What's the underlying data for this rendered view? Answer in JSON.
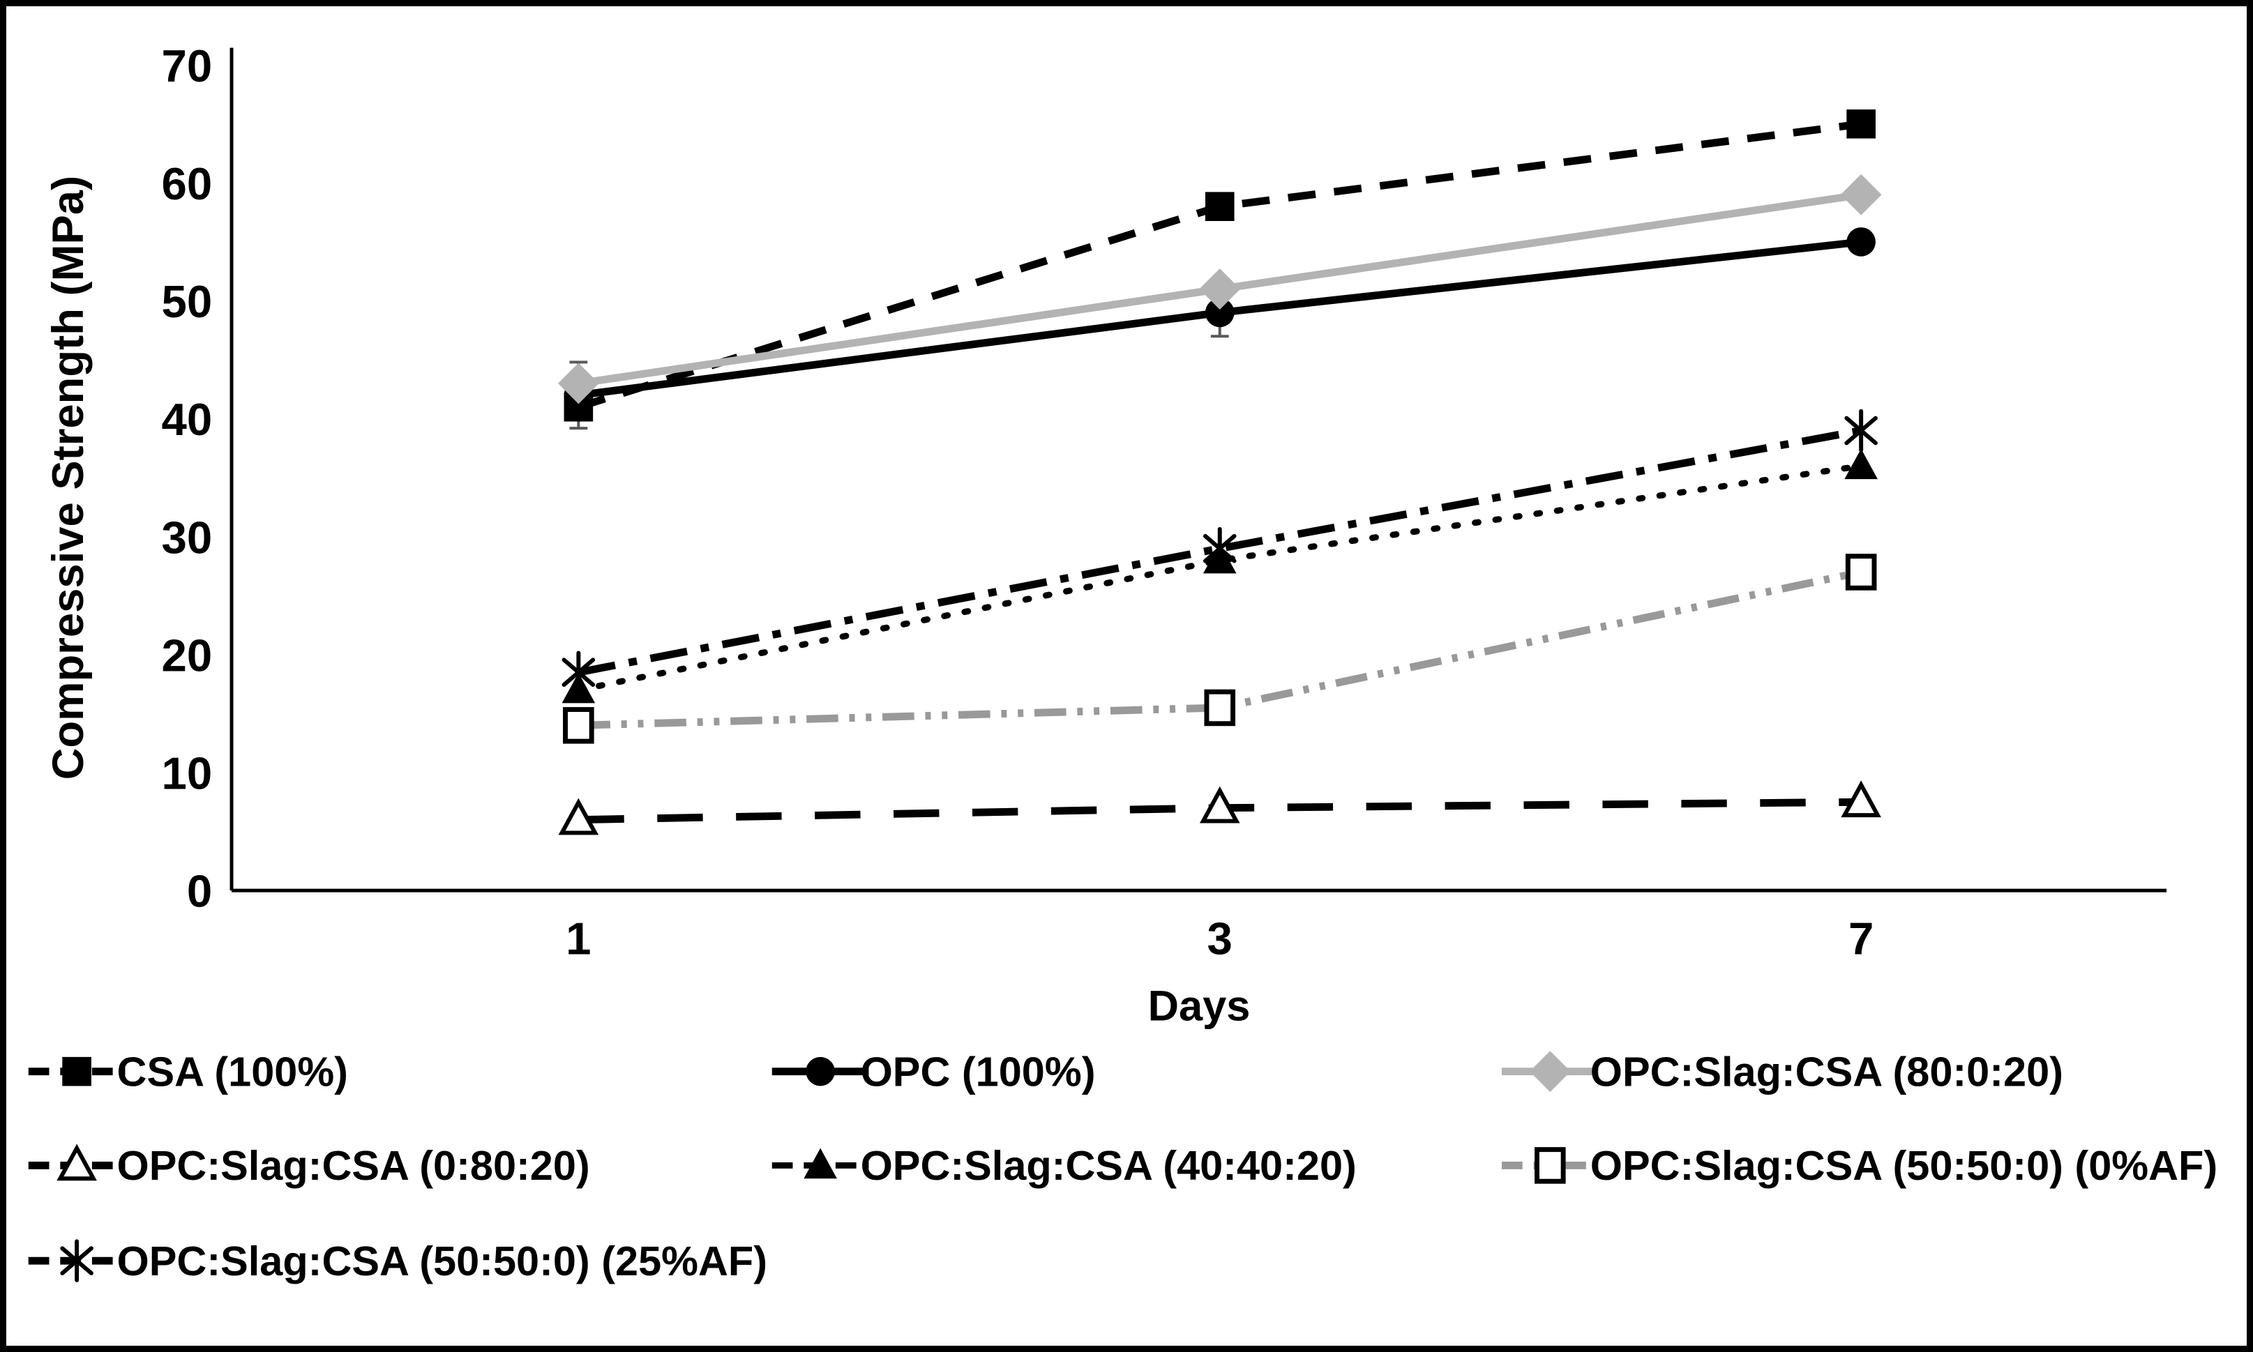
{
  "figure": {
    "background": "#ffffff",
    "border_color": "#000000"
  },
  "chart_data": {
    "type": "line",
    "title": "",
    "xlabel": "Days",
    "ylabel": "Compressive Strength (MPa)",
    "categories": [
      "1",
      "3",
      "7"
    ],
    "ylim": [
      0,
      70
    ],
    "ytick_step": 10,
    "ytick_labels": [
      "0",
      "10",
      "20",
      "30",
      "40",
      "50",
      "60",
      "70"
    ],
    "grid": false,
    "legend_position": "bottom",
    "axis_color": "#000000",
    "error_bar_color": "#595959",
    "series": [
      {
        "name": "CSA (100%)",
        "values": [
          41,
          58,
          65
        ],
        "color": "#000000",
        "marker": "filled-square",
        "line_style": "dashed",
        "error_bars": {
          "0": 1.8
        }
      },
      {
        "name": "OPC (100%)",
        "values": [
          42,
          49,
          55
        ],
        "color": "#000000",
        "marker": "filled-circle",
        "line_style": "solid",
        "error_bars": {
          "1": 2
        }
      },
      {
        "name": "OPC:Slag:CSA (80:0:20)",
        "values": [
          43,
          51,
          59
        ],
        "color": "#b3b3b3",
        "marker": "filled-diamond",
        "line_style": "solid",
        "error_bars": {
          "0": 1.8
        }
      },
      {
        "name": "OPC:Slag:CSA (0:80:20)",
        "values": [
          6,
          7,
          7.5
        ],
        "color": "#000000",
        "marker": "open-triangle",
        "line_style": "long-dash"
      },
      {
        "name": "OPC:Slag:CSA (40:40:20)",
        "values": [
          17,
          28,
          36
        ],
        "color": "#000000",
        "marker": "filled-triangle",
        "line_style": "dotted"
      },
      {
        "name": "OPC:Slag:CSA (50:50:0) (0%AF)",
        "values": [
          14,
          15.5,
          27
        ],
        "color": "#999999",
        "marker": "open-square",
        "line_style": "dash-dot-dot",
        "error_bars": {
          "1": 1,
          "2": 1.2
        }
      },
      {
        "name": "OPC:Slag:CSA (50:50:0) (25%AF)",
        "values": [
          18.5,
          29,
          39
        ],
        "color": "#000000",
        "marker": "asterisk",
        "line_style": "dash-dot"
      }
    ]
  }
}
